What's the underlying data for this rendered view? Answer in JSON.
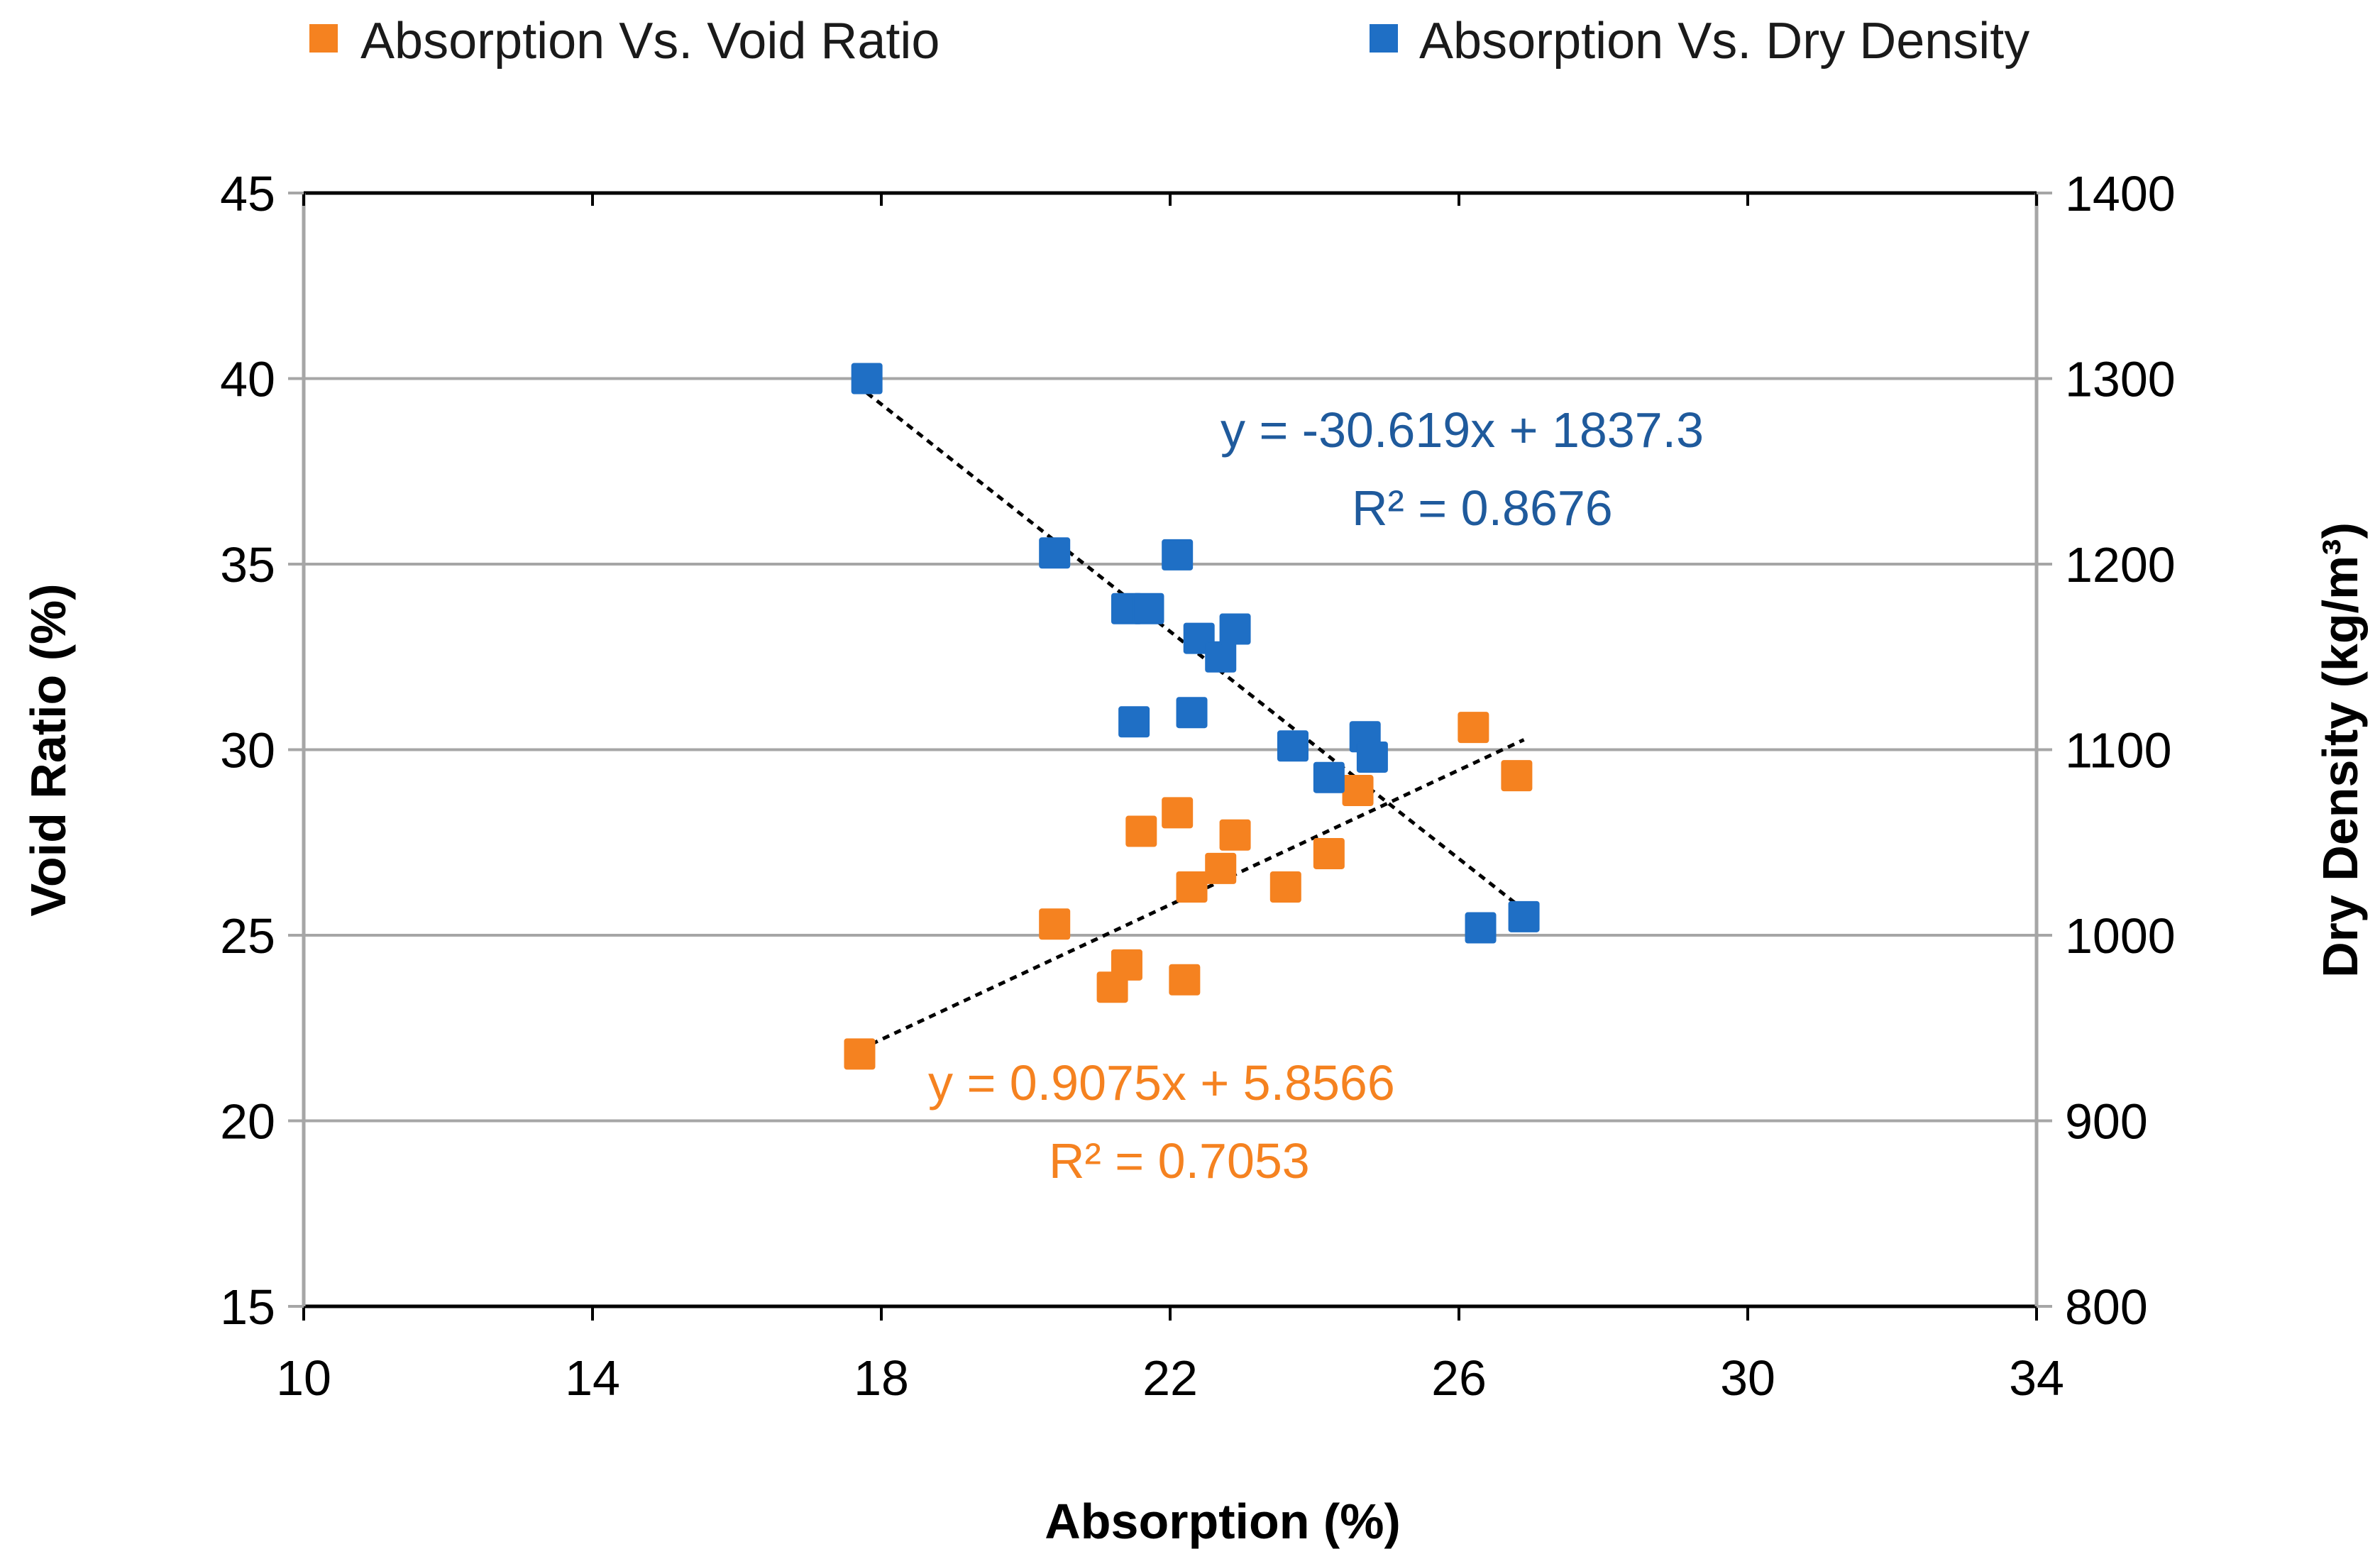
{
  "chart_data": {
    "type": "scatter",
    "x_axis": {
      "label": "Absorption (%)",
      "range": [
        10,
        34
      ],
      "ticks": [
        "10",
        "14",
        "18",
        "22",
        "26",
        "30",
        "34"
      ]
    },
    "y_axis_left": {
      "label": "Void Ratio (%)",
      "range": [
        15,
        45
      ],
      "ticks": [
        "15",
        "20",
        "25",
        "30",
        "35",
        "40",
        "45"
      ]
    },
    "y_axis_right": {
      "label": "Dry Density (kg/m³)",
      "range": [
        800,
        1400
      ],
      "ticks": [
        "800",
        "900",
        "1000",
        "1100",
        "1200",
        "1300",
        "1400"
      ]
    },
    "grid": true,
    "legend_position": "top",
    "series": [
      {
        "name": "Absorption Vs. Void Ratio",
        "axis": "left",
        "color": "#f58220",
        "points": [
          [
            17.7,
            21.8
          ],
          [
            20.4,
            25.3
          ],
          [
            21.2,
            23.6
          ],
          [
            21.4,
            24.2
          ],
          [
            21.6,
            27.8
          ],
          [
            22.1,
            28.3
          ],
          [
            22.2,
            23.8
          ],
          [
            22.3,
            26.3
          ],
          [
            22.7,
            26.8
          ],
          [
            22.9,
            27.7
          ],
          [
            23.6,
            26.3
          ],
          [
            24.2,
            27.2
          ],
          [
            24.6,
            28.9
          ],
          [
            26.2,
            30.6
          ],
          [
            26.8,
            29.3
          ]
        ],
        "trendline": {
          "x_range": [
            17.7,
            26.9
          ],
          "slope": 0.9075,
          "intercept": 5.8566,
          "equation": "y = 0.9075x  + 5.8566",
          "r_squared": "R² = 0.7053"
        }
      },
      {
        "name": "Absorption Vs. Dry Density",
        "axis": "right",
        "color": "#1f6fc5",
        "points": [
          [
            17.8,
            1300
          ],
          [
            20.4,
            1206
          ],
          [
            21.4,
            1176
          ],
          [
            21.7,
            1176
          ],
          [
            22.1,
            1205
          ],
          [
            22.3,
            1120
          ],
          [
            22.4,
            1160
          ],
          [
            22.7,
            1150
          ],
          [
            22.9,
            1165
          ],
          [
            21.5,
            1115
          ],
          [
            23.7,
            1102
          ],
          [
            24.2,
            1085
          ],
          [
            24.7,
            1107
          ],
          [
            24.8,
            1096
          ],
          [
            26.3,
            1004
          ],
          [
            26.9,
            1010
          ]
        ],
        "trendline": {
          "x_range": [
            17.8,
            26.8
          ],
          "slope": -30.619,
          "intercept": 1837.3,
          "equation": "y = -30.619x + 1837.3",
          "r_squared": "R² = 0.8676"
        }
      }
    ]
  },
  "colors": {
    "void_series": "#f58220",
    "void_text": "#f58220",
    "density_series": "#1f6fc5",
    "density_text": "#1f5a9c",
    "grid": "#a6a6a6"
  }
}
